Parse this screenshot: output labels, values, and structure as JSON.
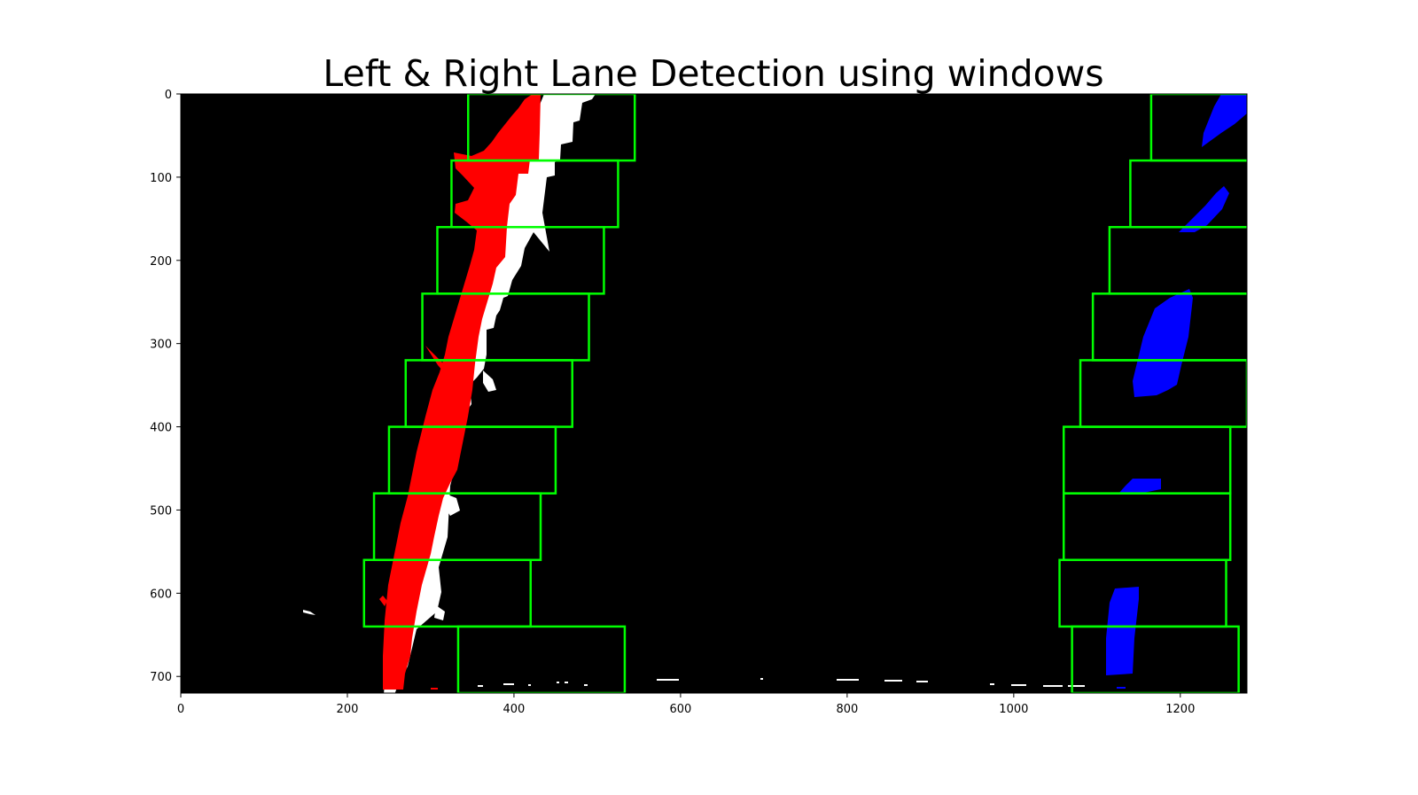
{
  "chart_data": {
    "type": "image",
    "title": "Left & Right Lane Detection using windows",
    "xlabel": "",
    "ylabel": "",
    "xlim": [
      0,
      1280
    ],
    "ylim": [
      720,
      0
    ],
    "xticks": [
      0,
      200,
      400,
      600,
      800,
      1000,
      1200
    ],
    "yticks": [
      0,
      100,
      200,
      300,
      400,
      500,
      600,
      700
    ],
    "grid": false,
    "colors": {
      "background": "#000000",
      "window": "#00ff00",
      "left_lane": "#ff0000",
      "right_lane": "#0000ff",
      "unused_pixels": "#ffffff"
    },
    "window_height": 80,
    "window_margin": 100,
    "left_windows": [
      {
        "x_center": 433,
        "y_low": 720,
        "y_high": 640
      },
      {
        "x_center": 320,
        "y_low": 640,
        "y_high": 560
      },
      {
        "x_center": 332,
        "y_low": 560,
        "y_high": 480
      },
      {
        "x_center": 350,
        "y_low": 480,
        "y_high": 400
      },
      {
        "x_center": 370,
        "y_low": 400,
        "y_high": 320
      },
      {
        "x_center": 390,
        "y_low": 320,
        "y_high": 240
      },
      {
        "x_center": 408,
        "y_low": 240,
        "y_high": 160
      },
      {
        "x_center": 425,
        "y_low": 160,
        "y_high": 80
      },
      {
        "x_center": 445,
        "y_low": 80,
        "y_high": 0
      }
    ],
    "right_windows": [
      {
        "x_center": 1170,
        "y_low": 720,
        "y_high": 640
      },
      {
        "x_center": 1155,
        "y_low": 640,
        "y_high": 560
      },
      {
        "x_center": 1160,
        "y_low": 560,
        "y_high": 480
      },
      {
        "x_center": 1160,
        "y_low": 480,
        "y_high": 400
      },
      {
        "x_center": 1180,
        "y_low": 400,
        "y_high": 320
      },
      {
        "x_center": 1195,
        "y_low": 320,
        "y_high": 240
      },
      {
        "x_center": 1215,
        "y_low": 240,
        "y_high": 160
      },
      {
        "x_center": 1240,
        "y_low": 160,
        "y_high": 80
      },
      {
        "x_center": 1265,
        "y_low": 80,
        "y_high": 0
      }
    ]
  }
}
